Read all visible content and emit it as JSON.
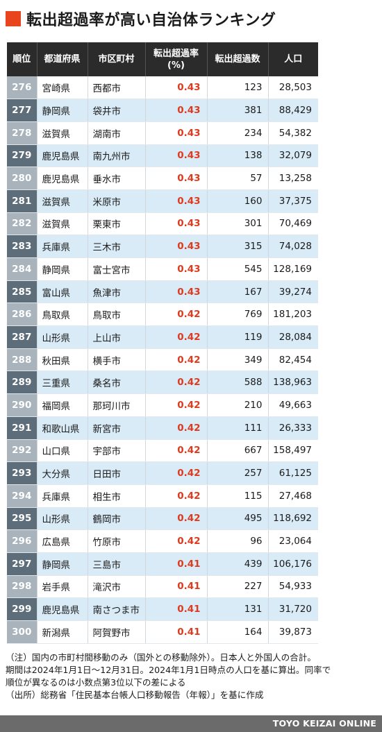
{
  "title": "転出超過率が高い自治体ランキング",
  "accent_color": "#e8451e",
  "rate_color": "#e03a1e",
  "table": {
    "headers": {
      "rank": "順位",
      "prefecture": "都道府県",
      "city": "市区町村",
      "rate_line1": "転出超過率",
      "rate_line2": "(%)",
      "excess": "転出超過数",
      "population": "人口"
    },
    "rows": [
      {
        "rank": "276",
        "prefecture": "宮崎県",
        "city": "西都市",
        "rate": "0.43",
        "excess": "123",
        "population": "28,503"
      },
      {
        "rank": "277",
        "prefecture": "静岡県",
        "city": "袋井市",
        "rate": "0.43",
        "excess": "381",
        "population": "88,429"
      },
      {
        "rank": "278",
        "prefecture": "滋賀県",
        "city": "湖南市",
        "rate": "0.43",
        "excess": "234",
        "population": "54,382"
      },
      {
        "rank": "279",
        "prefecture": "鹿児島県",
        "city": "南九州市",
        "rate": "0.43",
        "excess": "138",
        "population": "32,079"
      },
      {
        "rank": "280",
        "prefecture": "鹿児島県",
        "city": "垂水市",
        "rate": "0.43",
        "excess": "57",
        "population": "13,258"
      },
      {
        "rank": "281",
        "prefecture": "滋賀県",
        "city": "米原市",
        "rate": "0.43",
        "excess": "160",
        "population": "37,375"
      },
      {
        "rank": "282",
        "prefecture": "滋賀県",
        "city": "栗東市",
        "rate": "0.43",
        "excess": "301",
        "population": "70,469"
      },
      {
        "rank": "283",
        "prefecture": "兵庫県",
        "city": "三木市",
        "rate": "0.43",
        "excess": "315",
        "population": "74,028"
      },
      {
        "rank": "284",
        "prefecture": "静岡県",
        "city": "富士宮市",
        "rate": "0.43",
        "excess": "545",
        "population": "128,169"
      },
      {
        "rank": "285",
        "prefecture": "富山県",
        "city": "魚津市",
        "rate": "0.43",
        "excess": "167",
        "population": "39,274"
      },
      {
        "rank": "286",
        "prefecture": "鳥取県",
        "city": "鳥取市",
        "rate": "0.42",
        "excess": "769",
        "population": "181,203"
      },
      {
        "rank": "287",
        "prefecture": "山形県",
        "city": "上山市",
        "rate": "0.42",
        "excess": "119",
        "population": "28,084"
      },
      {
        "rank": "288",
        "prefecture": "秋田県",
        "city": "横手市",
        "rate": "0.42",
        "excess": "349",
        "population": "82,454"
      },
      {
        "rank": "289",
        "prefecture": "三重県",
        "city": "桑名市",
        "rate": "0.42",
        "excess": "588",
        "population": "138,963"
      },
      {
        "rank": "290",
        "prefecture": "福岡県",
        "city": "那珂川市",
        "rate": "0.42",
        "excess": "210",
        "population": "49,663"
      },
      {
        "rank": "291",
        "prefecture": "和歌山県",
        "city": "新宮市",
        "rate": "0.42",
        "excess": "111",
        "population": "26,333"
      },
      {
        "rank": "292",
        "prefecture": "山口県",
        "city": "宇部市",
        "rate": "0.42",
        "excess": "667",
        "population": "158,497"
      },
      {
        "rank": "293",
        "prefecture": "大分県",
        "city": "日田市",
        "rate": "0.42",
        "excess": "257",
        "population": "61,125"
      },
      {
        "rank": "294",
        "prefecture": "兵庫県",
        "city": "相生市",
        "rate": "0.42",
        "excess": "115",
        "population": "27,468"
      },
      {
        "rank": "295",
        "prefecture": "山形県",
        "city": "鶴岡市",
        "rate": "0.42",
        "excess": "495",
        "population": "118,692"
      },
      {
        "rank": "296",
        "prefecture": "広島県",
        "city": "竹原市",
        "rate": "0.42",
        "excess": "96",
        "population": "23,064"
      },
      {
        "rank": "297",
        "prefecture": "静岡県",
        "city": "三島市",
        "rate": "0.41",
        "excess": "439",
        "population": "106,176"
      },
      {
        "rank": "298",
        "prefecture": "岩手県",
        "city": "滝沢市",
        "rate": "0.41",
        "excess": "227",
        "population": "54,933"
      },
      {
        "rank": "299",
        "prefecture": "鹿児島県",
        "city": "南さつま市",
        "rate": "0.41",
        "excess": "131",
        "population": "31,720"
      },
      {
        "rank": "300",
        "prefecture": "新潟県",
        "city": "阿賀野市",
        "rate": "0.41",
        "excess": "164",
        "population": "39,873"
      }
    ]
  },
  "notes": [
    "（注）国内の市町村間移動のみ（国外との移動除外）。日本人と外国人の合計。",
    "期間は2024年1月1日〜12月31日。2024年1月1日時点の人口を基に算出。同率で",
    "順位が異なるのは小数点第3位以下の差による",
    "（出所）総務省「住民基本台帳人口移動報告（年報）」を基に作成"
  ],
  "footer": {
    "brand": "TOYO KEIZAI ONLINE"
  }
}
